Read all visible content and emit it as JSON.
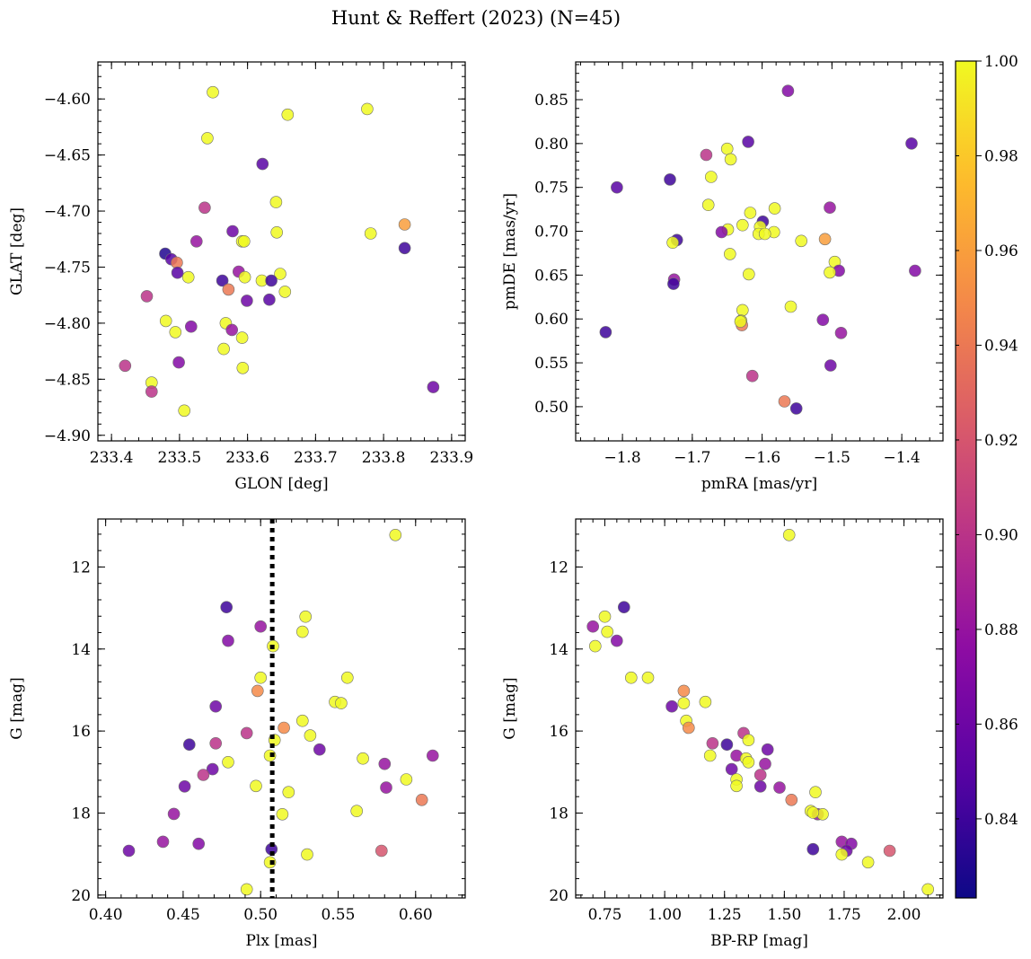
{
  "figure": {
    "title": "Hunt & Reffert (2023) (N=45)"
  },
  "colorbar": {
    "vmin": 0.8233,
    "vmax": 1.0,
    "ticks": [
      0.84,
      0.86,
      0.88,
      0.9,
      0.92,
      0.94,
      0.96,
      0.98,
      1.0
    ],
    "tick_labels": [
      "0.84",
      "0.86",
      "0.88",
      "0.90",
      "0.92",
      "0.94",
      "0.96",
      "0.98",
      "1.00"
    ],
    "colormap": "plasma"
  },
  "chart_data": [
    {
      "id": "glon-glat",
      "type": "scatter",
      "title": "",
      "xlabel": "GLON [deg]",
      "ylabel": "GLAT [deg]",
      "xlim": [
        233.38,
        233.92
      ],
      "ylim": [
        -4.905,
        -4.567
      ],
      "y_inverted": false,
      "xticks": [
        233.4,
        233.5,
        233.6,
        233.7,
        233.8,
        233.9
      ],
      "xtick_labels": [
        "233.4",
        "233.5",
        "233.6",
        "233.7",
        "233.8",
        "233.9"
      ],
      "yticks": [
        -4.9,
        -4.85,
        -4.8,
        -4.75,
        -4.7,
        -4.65,
        -4.6
      ],
      "ytick_labels": [
        "−4.90",
        "−4.85",
        "−4.80",
        "−4.75",
        "−4.70",
        "−4.65",
        "−4.60"
      ],
      "x_minor_step": 0.02,
      "y_minor_step": 0.01,
      "points": [
        [
          233.549,
          -4.594,
          1.0
        ],
        [
          233.659,
          -4.614,
          1.0
        ],
        [
          233.776,
          -4.609,
          1.0
        ],
        [
          233.541,
          -4.635,
          1.0
        ],
        [
          233.622,
          -4.658,
          0.85
        ],
        [
          233.642,
          -4.692,
          1.0
        ],
        [
          233.537,
          -4.697,
          0.9
        ],
        [
          233.781,
          -4.72,
          1.0
        ],
        [
          233.643,
          -4.719,
          1.0
        ],
        [
          233.578,
          -4.718,
          0.86
        ],
        [
          233.831,
          -4.712,
          0.96
        ],
        [
          233.592,
          -4.727,
          1.0
        ],
        [
          233.595,
          -4.727,
          1.0
        ],
        [
          233.525,
          -4.727,
          0.88
        ],
        [
          233.831,
          -4.733,
          0.84
        ],
        [
          233.479,
          -4.738,
          0.83
        ],
        [
          233.488,
          -4.743,
          0.85
        ],
        [
          233.496,
          -4.746,
          0.94
        ],
        [
          233.497,
          -4.755,
          0.85
        ],
        [
          233.587,
          -4.754,
          0.88
        ],
        [
          233.648,
          -4.756,
          1.0
        ],
        [
          233.513,
          -4.759,
          1.0
        ],
        [
          233.596,
          -4.759,
          1.0
        ],
        [
          233.563,
          -4.762,
          0.84
        ],
        [
          233.621,
          -4.762,
          1.0
        ],
        [
          233.635,
          -4.762,
          0.84
        ],
        [
          233.655,
          -4.772,
          1.0
        ],
        [
          233.572,
          -4.77,
          0.94
        ],
        [
          233.452,
          -4.776,
          0.9
        ],
        [
          233.632,
          -4.779,
          0.85
        ],
        [
          233.599,
          -4.78,
          0.86
        ],
        [
          233.48,
          -4.798,
          1.0
        ],
        [
          233.568,
          -4.8,
          1.0
        ],
        [
          233.517,
          -4.803,
          0.87
        ],
        [
          233.577,
          -4.806,
          0.88
        ],
        [
          233.494,
          -4.808,
          1.0
        ],
        [
          233.592,
          -4.813,
          1.0
        ],
        [
          233.565,
          -4.823,
          1.0
        ],
        [
          233.499,
          -4.835,
          0.87
        ],
        [
          233.42,
          -4.838,
          0.9
        ],
        [
          233.593,
          -4.84,
          1.0
        ],
        [
          233.459,
          -4.853,
          1.0
        ],
        [
          233.459,
          -4.861,
          0.9
        ],
        [
          233.873,
          -4.857,
          0.86
        ],
        [
          233.507,
          -4.878,
          1.0
        ]
      ]
    },
    {
      "id": "pmra-pmde",
      "type": "scatter",
      "title": "",
      "xlabel": "pmRA [mas/yr]",
      "ylabel": "pmDE [mas/yr]",
      "xlim": [
        -1.867,
        -1.341
      ],
      "ylim": [
        0.461,
        0.893
      ],
      "y_inverted": false,
      "xticks": [
        -1.8,
        -1.7,
        -1.6,
        -1.5,
        -1.4
      ],
      "xtick_labels": [
        "−1.8",
        "−1.7",
        "−1.6",
        "−1.5",
        "−1.4"
      ],
      "yticks": [
        0.5,
        0.55,
        0.6,
        0.65,
        0.7,
        0.75,
        0.8,
        0.85
      ],
      "ytick_labels": [
        "0.50",
        "0.55",
        "0.60",
        "0.65",
        "0.70",
        "0.75",
        "0.80",
        "0.85"
      ],
      "x_minor_step": 0.02,
      "y_minor_step": 0.01,
      "points": [
        [
          -1.563,
          0.86,
          0.87
        ],
        [
          -1.62,
          0.802,
          0.85
        ],
        [
          -1.386,
          0.8,
          0.85
        ],
        [
          -1.65,
          0.794,
          1.0
        ],
        [
          -1.68,
          0.787,
          0.9
        ],
        [
          -1.645,
          0.782,
          1.0
        ],
        [
          -1.673,
          0.762,
          1.0
        ],
        [
          -1.732,
          0.759,
          0.84
        ],
        [
          -1.808,
          0.75,
          0.85
        ],
        [
          -1.677,
          0.73,
          1.0
        ],
        [
          -1.582,
          0.726,
          1.0
        ],
        [
          -1.503,
          0.727,
          0.88
        ],
        [
          -1.617,
          0.721,
          1.0
        ],
        [
          -1.599,
          0.711,
          0.84
        ],
        [
          -1.628,
          0.707,
          1.0
        ],
        [
          -1.603,
          0.705,
          1.0
        ],
        [
          -1.649,
          0.702,
          1.0
        ],
        [
          -1.658,
          0.699,
          0.87
        ],
        [
          -1.605,
          0.697,
          1.0
        ],
        [
          -1.583,
          0.699,
          1.0
        ],
        [
          -1.596,
          0.697,
          1.0
        ],
        [
          -1.722,
          0.69,
          0.84
        ],
        [
          -1.728,
          0.687,
          1.0
        ],
        [
          -1.544,
          0.689,
          1.0
        ],
        [
          -1.51,
          0.691,
          0.96
        ],
        [
          -1.646,
          0.674,
          1.0
        ],
        [
          -1.496,
          0.665,
          1.0
        ],
        [
          -1.49,
          0.655,
          0.87
        ],
        [
          -1.381,
          0.655,
          0.87
        ],
        [
          -1.619,
          0.651,
          1.0
        ],
        [
          -1.503,
          0.653,
          1.0
        ],
        [
          -1.726,
          0.645,
          0.88
        ],
        [
          -1.727,
          0.64,
          0.84
        ],
        [
          -1.559,
          0.614,
          1.0
        ],
        [
          -1.628,
          0.61,
          1.0
        ],
        [
          -1.63,
          0.598,
          1.0
        ],
        [
          -1.513,
          0.599,
          0.87
        ],
        [
          -1.629,
          0.593,
          0.94
        ],
        [
          -1.824,
          0.585,
          0.84
        ],
        [
          -1.487,
          0.584,
          0.88
        ],
        [
          -1.614,
          0.535,
          0.9
        ],
        [
          -1.502,
          0.547,
          0.86
        ],
        [
          -1.568,
          0.506,
          0.94
        ],
        [
          -1.551,
          0.498,
          0.84
        ],
        [
          -1.631,
          0.597,
          1.0
        ]
      ]
    },
    {
      "id": "plx-g",
      "type": "scatter",
      "title": "",
      "xlabel": "Plx [mas]",
      "ylabel": "G [mag]",
      "xlim": [
        0.395,
        0.632
      ],
      "ylim": [
        20.07,
        10.83
      ],
      "y_inverted": true,
      "xticks": [
        0.4,
        0.45,
        0.5,
        0.55,
        0.6
      ],
      "xtick_labels": [
        "0.40",
        "0.45",
        "0.50",
        "0.55",
        "0.60"
      ],
      "yticks": [
        12,
        14,
        16,
        18,
        20
      ],
      "ytick_labels": [
        "12",
        "14",
        "16",
        "18",
        "20"
      ],
      "x_minor_step": 0.01,
      "y_minor_step": 0.4,
      "vline": 0.5075,
      "points": [
        [
          0.587,
          11.22,
          1.0
        ],
        [
          0.478,
          12.98,
          0.84
        ],
        [
          0.529,
          13.21,
          1.0
        ],
        [
          0.5,
          13.45,
          0.88
        ],
        [
          0.527,
          13.58,
          1.0
        ],
        [
          0.479,
          13.8,
          0.87
        ],
        [
          0.508,
          13.93,
          1.0
        ],
        [
          0.5,
          14.7,
          1.0
        ],
        [
          0.556,
          14.7,
          1.0
        ],
        [
          0.498,
          15.02,
          0.95
        ],
        [
          0.548,
          15.29,
          1.0
        ],
        [
          0.552,
          15.32,
          1.0
        ],
        [
          0.471,
          15.4,
          0.86
        ],
        [
          0.527,
          15.75,
          1.0
        ],
        [
          0.515,
          15.92,
          0.95
        ],
        [
          0.532,
          16.11,
          1.0
        ],
        [
          0.491,
          16.05,
          0.9
        ],
        [
          0.509,
          16.22,
          1.0
        ],
        [
          0.454,
          16.33,
          0.84
        ],
        [
          0.471,
          16.3,
          0.9
        ],
        [
          0.538,
          16.45,
          0.86
        ],
        [
          0.506,
          16.6,
          1.0
        ],
        [
          0.611,
          16.6,
          0.88
        ],
        [
          0.566,
          16.67,
          1.0
        ],
        [
          0.479,
          16.76,
          1.0
        ],
        [
          0.58,
          16.8,
          0.88
        ],
        [
          0.469,
          16.93,
          0.86
        ],
        [
          0.463,
          17.07,
          0.9
        ],
        [
          0.594,
          17.18,
          1.0
        ],
        [
          0.451,
          17.35,
          0.86
        ],
        [
          0.497,
          17.34,
          1.0
        ],
        [
          0.581,
          17.38,
          0.88
        ],
        [
          0.518,
          17.49,
          1.0
        ],
        [
          0.604,
          17.68,
          0.94
        ],
        [
          0.562,
          17.95,
          1.0
        ],
        [
          0.514,
          18.03,
          1.0
        ],
        [
          0.444,
          18.02,
          0.88
        ],
        [
          0.437,
          18.7,
          0.88
        ],
        [
          0.46,
          18.75,
          0.87
        ],
        [
          0.415,
          18.92,
          0.86
        ],
        [
          0.507,
          18.88,
          0.84
        ],
        [
          0.578,
          18.92,
          0.92
        ],
        [
          0.53,
          19.01,
          1.0
        ],
        [
          0.506,
          19.2,
          1.0
        ],
        [
          0.491,
          19.86,
          1.0
        ]
      ]
    },
    {
      "id": "bprp-g",
      "type": "scatter",
      "title": "",
      "xlabel": "BP-RP [mag]",
      "ylabel": "G [mag]",
      "xlim": [
        0.628,
        2.163
      ],
      "ylim": [
        20.07,
        10.83
      ],
      "y_inverted": true,
      "xticks": [
        0.75,
        1.0,
        1.25,
        1.5,
        1.75,
        2.0
      ],
      "xtick_labels": [
        "0.75",
        "1.00",
        "1.25",
        "1.50",
        "1.75",
        "2.00"
      ],
      "yticks": [
        12,
        14,
        16,
        18,
        20
      ],
      "ytick_labels": [
        "12",
        "14",
        "16",
        "18",
        "20"
      ],
      "x_minor_step": 0.05,
      "y_minor_step": 0.4,
      "points": [
        [
          1.52,
          11.22,
          1.0
        ],
        [
          0.83,
          12.98,
          0.84
        ],
        [
          0.75,
          13.21,
          1.0
        ],
        [
          0.7,
          13.45,
          0.88
        ],
        [
          0.76,
          13.58,
          1.0
        ],
        [
          0.8,
          13.8,
          0.87
        ],
        [
          0.71,
          13.93,
          1.0
        ],
        [
          0.86,
          14.7,
          1.0
        ],
        [
          0.93,
          14.7,
          1.0
        ],
        [
          1.08,
          15.02,
          0.95
        ],
        [
          1.08,
          15.32,
          1.0
        ],
        [
          1.17,
          15.29,
          1.0
        ],
        [
          1.03,
          15.4,
          0.86
        ],
        [
          1.09,
          15.75,
          1.0
        ],
        [
          1.1,
          15.92,
          0.95
        ],
        [
          1.33,
          16.05,
          0.9
        ],
        [
          1.35,
          16.22,
          1.0
        ],
        [
          1.2,
          16.3,
          0.9
        ],
        [
          1.26,
          16.33,
          0.84
        ],
        [
          1.43,
          16.45,
          0.86
        ],
        [
          1.19,
          16.6,
          1.0
        ],
        [
          1.3,
          16.6,
          0.88
        ],
        [
          1.34,
          16.67,
          1.0
        ],
        [
          1.35,
          16.76,
          1.0
        ],
        [
          1.42,
          16.8,
          0.88
        ],
        [
          1.28,
          16.93,
          0.86
        ],
        [
          1.4,
          17.07,
          0.9
        ],
        [
          1.3,
          17.18,
          1.0
        ],
        [
          1.3,
          17.34,
          1.0
        ],
        [
          1.4,
          17.35,
          0.86
        ],
        [
          1.48,
          17.38,
          0.88
        ],
        [
          1.63,
          17.49,
          1.0
        ],
        [
          1.53,
          17.68,
          0.94
        ],
        [
          1.61,
          17.95,
          1.0
        ],
        [
          1.64,
          18.03,
          0.88
        ],
        [
          1.66,
          18.03,
          1.0
        ],
        [
          1.74,
          18.7,
          0.88
        ],
        [
          1.78,
          18.75,
          0.87
        ],
        [
          1.62,
          18.88,
          0.84
        ],
        [
          1.76,
          18.92,
          0.86
        ],
        [
          1.94,
          18.92,
          0.92
        ],
        [
          1.74,
          19.01,
          1.0
        ],
        [
          1.85,
          19.2,
          1.0
        ],
        [
          2.1,
          19.86,
          1.0
        ],
        [
          1.62,
          17.99,
          1.0
        ]
      ]
    }
  ]
}
